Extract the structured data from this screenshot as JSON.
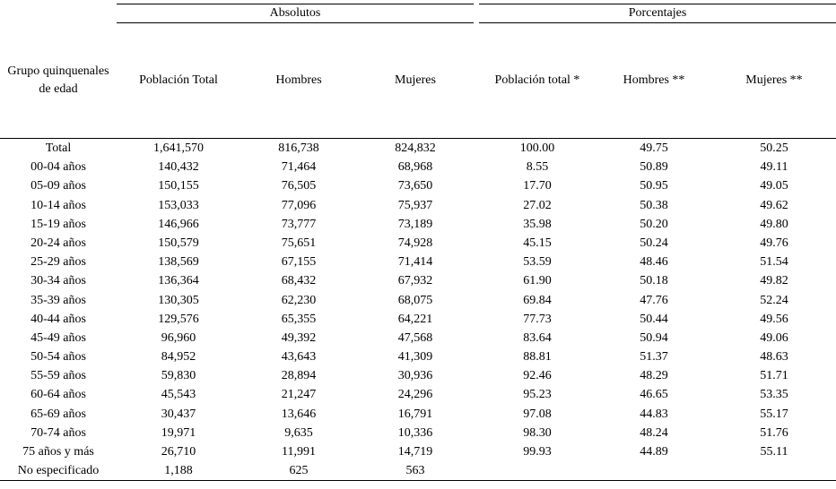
{
  "chart_data": {
    "type": "table",
    "row_header_lines": [
      "Grupo quinquenales",
      "de edad"
    ],
    "column_groups": [
      {
        "label": "Absolutos",
        "columns": [
          "Población Total",
          "Hombres",
          "Mujeres"
        ]
      },
      {
        "label": "Porcentajes",
        "columns": [
          "Población total *",
          "Hombres **",
          "Mujeres **"
        ]
      }
    ],
    "rows": [
      [
        "Total",
        "1,641,570",
        "816,738",
        "824,832",
        "100.00",
        "49.75",
        "50.25"
      ],
      [
        "00-04 años",
        "140,432",
        "71,464",
        "68,968",
        "8.55",
        "50.89",
        "49.11"
      ],
      [
        "05-09 años",
        "150,155",
        "76,505",
        "73,650",
        "17.70",
        "50.95",
        "49.05"
      ],
      [
        "10-14 años",
        "153,033",
        "77,096",
        "75,937",
        "27.02",
        "50.38",
        "49.62"
      ],
      [
        "15-19 años",
        "146,966",
        "73,777",
        "73,189",
        "35.98",
        "50.20",
        "49.80"
      ],
      [
        "20-24 años",
        "150,579",
        "75,651",
        "74,928",
        "45.15",
        "50.24",
        "49.76"
      ],
      [
        "25-29 años",
        "138,569",
        "67,155",
        "71,414",
        "53.59",
        "48.46",
        "51.54"
      ],
      [
        "30-34 años",
        "136,364",
        "68,432",
        "67,932",
        "61.90",
        "50.18",
        "49.82"
      ],
      [
        "35-39 años",
        "130,305",
        "62,230",
        "68,075",
        "69.84",
        "47.76",
        "52.24"
      ],
      [
        "40-44 años",
        "129,576",
        "65,355",
        "64,221",
        "77.73",
        "50.44",
        "49.56"
      ],
      [
        "45-49 años",
        "96,960",
        "49,392",
        "47,568",
        "83.64",
        "50.94",
        "49.06"
      ],
      [
        "50-54 años",
        "84,952",
        "43,643",
        "41,309",
        "88.81",
        "51.37",
        "48.63"
      ],
      [
        "55-59 años",
        "59,830",
        "28,894",
        "30,936",
        "92.46",
        "48.29",
        "51.71"
      ],
      [
        "60-64 años",
        "45,543",
        "21,247",
        "24,296",
        "95.23",
        "46.65",
        "53.35"
      ],
      [
        "65-69 años",
        "30,437",
        "13,646",
        "16,791",
        "97.08",
        "44.83",
        "55.17"
      ],
      [
        "70-74 años",
        "19,971",
        "9,635",
        "10,336",
        "98.30",
        "48.24",
        "51.76"
      ],
      [
        "75 años y más",
        "26,710",
        "11,991",
        "14,719",
        "99.93",
        "44.89",
        "55.11"
      ],
      [
        "No especificado",
        "1,188",
        "625",
        "563",
        "",
        "",
        ""
      ]
    ],
    "colors": {
      "text": "#000000",
      "background": "#ffffff",
      "rule": "#000000"
    }
  }
}
